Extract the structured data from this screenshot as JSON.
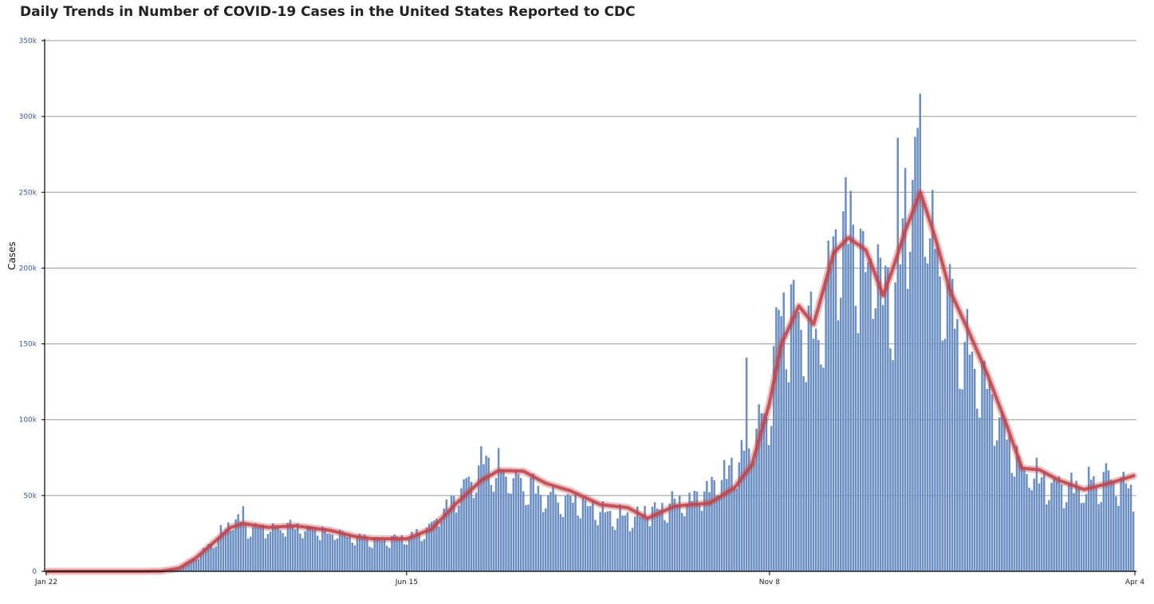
{
  "chart_data": {
    "type": "bar",
    "title": "Daily Trends in Number of COVID-19 Cases in the United States Reported to CDC",
    "ylabel": "Cases",
    "xlabel": "",
    "ylim": [
      0,
      350000
    ],
    "ytick_labels": [
      "0",
      "50k",
      "100k",
      "150k",
      "200k",
      "250k",
      "300k",
      "350k"
    ],
    "xtick_labels": [
      "Jan 22",
      "Jun 15",
      "Nov 8",
      "Apr 4"
    ],
    "x_start": "2020-01-22",
    "x_end": "2021-04-04",
    "grid": true,
    "colors": {
      "bars": "#6b8fc2",
      "average_line": "#c0474f",
      "grid": "#999999"
    },
    "series": [
      {
        "type": "bar",
        "name": "",
        "points": [
          [
            "2020-01-22",
            0
          ],
          [
            "2020-02-29",
            0
          ],
          [
            "2020-03-08",
            200
          ],
          [
            "2020-03-15",
            2500
          ],
          [
            "2020-03-22",
            9000
          ],
          [
            "2020-03-29",
            20000
          ],
          [
            "2020-04-02",
            28000
          ],
          [
            "2020-04-05",
            32000
          ],
          [
            "2020-04-10",
            31000
          ],
          [
            "2020-04-20",
            29000
          ],
          [
            "2020-05-01",
            30000
          ],
          [
            "2020-05-15",
            27000
          ],
          [
            "2020-06-01",
            22000
          ],
          [
            "2020-06-15",
            22000
          ],
          [
            "2020-06-25",
            32000
          ],
          [
            "2020-07-01",
            43000
          ],
          [
            "2020-07-10",
            58000
          ],
          [
            "2020-07-16",
            70000
          ],
          [
            "2020-07-20",
            68000
          ],
          [
            "2020-08-01",
            58000
          ],
          [
            "2020-08-15",
            50000
          ],
          [
            "2020-09-01",
            42000
          ],
          [
            "2020-09-12",
            36000
          ],
          [
            "2020-09-20",
            42000
          ],
          [
            "2020-10-01",
            44000
          ],
          [
            "2020-10-15",
            56000
          ],
          [
            "2020-10-25",
            70000
          ],
          [
            "2020-11-01",
            85000
          ],
          [
            "2020-11-08",
            115000
          ],
          [
            "2020-11-13",
            170000
          ],
          [
            "2020-11-20",
            180000
          ],
          [
            "2020-11-26",
            150000
          ],
          [
            "2020-12-04",
            220000
          ],
          [
            "2020-12-10",
            235000
          ],
          [
            "2020-12-17",
            215000
          ],
          [
            "2020-12-24",
            195000
          ],
          [
            "2020-12-28",
            170000
          ],
          [
            "2021-01-02",
            260000
          ],
          [
            "2021-01-08",
            270000
          ],
          [
            "2021-01-14",
            230000
          ],
          [
            "2021-01-20",
            180000
          ],
          [
            "2021-01-27",
            160000
          ],
          [
            "2021-02-04",
            120000
          ],
          [
            "2021-02-11",
            95000
          ],
          [
            "2021-02-18",
            70000
          ],
          [
            "2021-02-25",
            63000
          ],
          [
            "2021-03-05",
            60000
          ],
          [
            "2021-03-15",
            55000
          ],
          [
            "2021-03-25",
            62000
          ],
          [
            "2021-04-04",
            55000
          ]
        ]
      },
      {
        "type": "line",
        "name": "",
        "points": [
          [
            "2020-01-22",
            0
          ],
          [
            "2020-02-29",
            0
          ],
          [
            "2020-03-08",
            200
          ],
          [
            "2020-03-15",
            2000
          ],
          [
            "2020-03-22",
            9000
          ],
          [
            "2020-03-29",
            19000
          ],
          [
            "2020-04-05",
            29000
          ],
          [
            "2020-04-10",
            31500
          ],
          [
            "2020-04-20",
            29000
          ],
          [
            "2020-05-01",
            30000
          ],
          [
            "2020-05-15",
            27000
          ],
          [
            "2020-05-25",
            23000
          ],
          [
            "2020-06-01",
            21500
          ],
          [
            "2020-06-15",
            21500
          ],
          [
            "2020-06-25",
            28000
          ],
          [
            "2020-07-05",
            45000
          ],
          [
            "2020-07-15",
            60000
          ],
          [
            "2020-07-22",
            66500
          ],
          [
            "2020-08-01",
            66000
          ],
          [
            "2020-08-10",
            58000
          ],
          [
            "2020-08-20",
            53000
          ],
          [
            "2020-09-01",
            44000
          ],
          [
            "2020-09-12",
            42000
          ],
          [
            "2020-09-20",
            35000
          ],
          [
            "2020-10-01",
            43000
          ],
          [
            "2020-10-15",
            45000
          ],
          [
            "2020-10-25",
            55000
          ],
          [
            "2020-11-01",
            70000
          ],
          [
            "2020-11-08",
            110000
          ],
          [
            "2020-11-13",
            150000
          ],
          [
            "2020-11-20",
            175000
          ],
          [
            "2020-11-26",
            163000
          ],
          [
            "2020-12-04",
            210000
          ],
          [
            "2020-12-10",
            220000
          ],
          [
            "2020-12-17",
            212000
          ],
          [
            "2020-12-24",
            182000
          ],
          [
            "2020-12-28",
            200000
          ],
          [
            "2021-01-02",
            225000
          ],
          [
            "2021-01-08",
            250000
          ],
          [
            "2021-01-14",
            220000
          ],
          [
            "2021-01-20",
            185000
          ],
          [
            "2021-01-27",
            160000
          ],
          [
            "2021-02-04",
            130000
          ],
          [
            "2021-02-11",
            100000
          ],
          [
            "2021-02-18",
            68000
          ],
          [
            "2021-02-25",
            67000
          ],
          [
            "2021-03-05",
            60000
          ],
          [
            "2021-03-15",
            54000
          ],
          [
            "2021-03-25",
            58000
          ],
          [
            "2021-04-04",
            63000
          ]
        ]
      }
    ],
    "spikes": [
      [
        "2020-04-10",
        43000
      ],
      [
        "2020-07-18",
        75000
      ],
      [
        "2020-10-30",
        141000
      ],
      [
        "2020-12-11",
        251000
      ],
      [
        "2020-12-30",
        286000
      ],
      [
        "2021-01-08",
        315000
      ]
    ]
  }
}
